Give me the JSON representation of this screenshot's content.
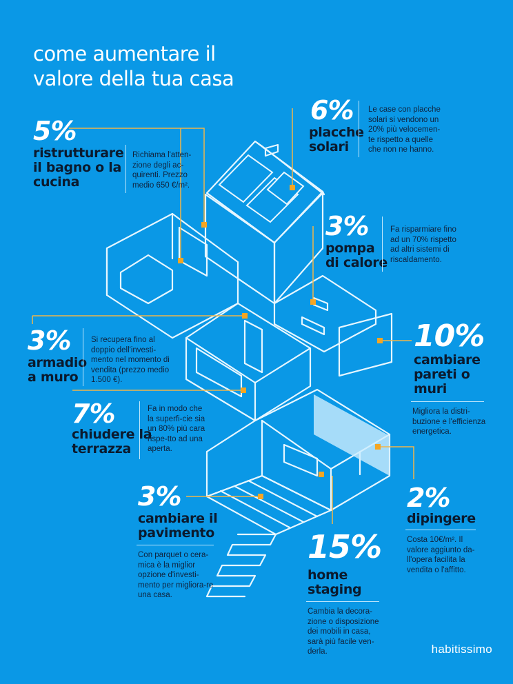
{
  "title": "come aumentare il valore della tua casa",
  "brand": "habitissimo",
  "colors": {
    "background": "#0a98e6",
    "accent": "#f5a623",
    "label": "#0b1a2e",
    "lines": "#dff3ff"
  },
  "items": [
    {
      "id": "bagno",
      "pct": "5%",
      "label_lines": [
        "ristrutturare",
        "il bagno o la",
        "cucina"
      ],
      "desc": "Richiama l'atten-zione degli ac-quirenti. Prezzo medio 650 €/m²."
    },
    {
      "id": "solari",
      "pct": "6%",
      "label_lines": [
        "placche",
        "solari"
      ],
      "desc": "Le case con placche solari si vendono un 20% più velocemen-te rispetto a quelle che non ne hanno."
    },
    {
      "id": "pompa",
      "pct": "3%",
      "label_lines": [
        "pompa",
        "di calore"
      ],
      "desc": "Fa risparmiare fino ad un 70% rispetto ad altri sistemi di riscaldamento."
    },
    {
      "id": "armadio",
      "pct": "3%",
      "label_lines": [
        "armadio",
        "a muro"
      ],
      "desc": "Si recupera fino al doppio dell'investi-mento nel momento di vendita (prezzo medio 1.500 €)."
    },
    {
      "id": "pareti",
      "pct": "10%",
      "label_lines": [
        "cambiare",
        "pareti o",
        "muri"
      ],
      "desc": "Migliora la distri-buzione e l'efficienza energetica."
    },
    {
      "id": "terrazza",
      "pct": "7%",
      "label_lines": [
        "chiudere la",
        "terrazza"
      ],
      "desc": "Fa in modo che la superfi-cie sia un 80% più cara rispe-tto ad una aperta."
    },
    {
      "id": "pavimento",
      "pct": "3%",
      "label_lines": [
        "cambiare il",
        "pavimento"
      ],
      "desc": "Con parquet o cera-mica è la miglior opzione d'investi-mento per migliora-re una casa."
    },
    {
      "id": "dipingere",
      "pct": "2%",
      "label_lines": [
        "dipingere"
      ],
      "desc": "Costa 10€/m². Il valore aggiunto da-ll'opera facilita la vendita o l'affitto."
    },
    {
      "id": "staging",
      "pct": "15%",
      "label_lines": [
        "home",
        "staging"
      ],
      "desc": "Cambia la decora-zione o disposizione dei mobili in casa, sarà più facile ven-derla."
    }
  ]
}
